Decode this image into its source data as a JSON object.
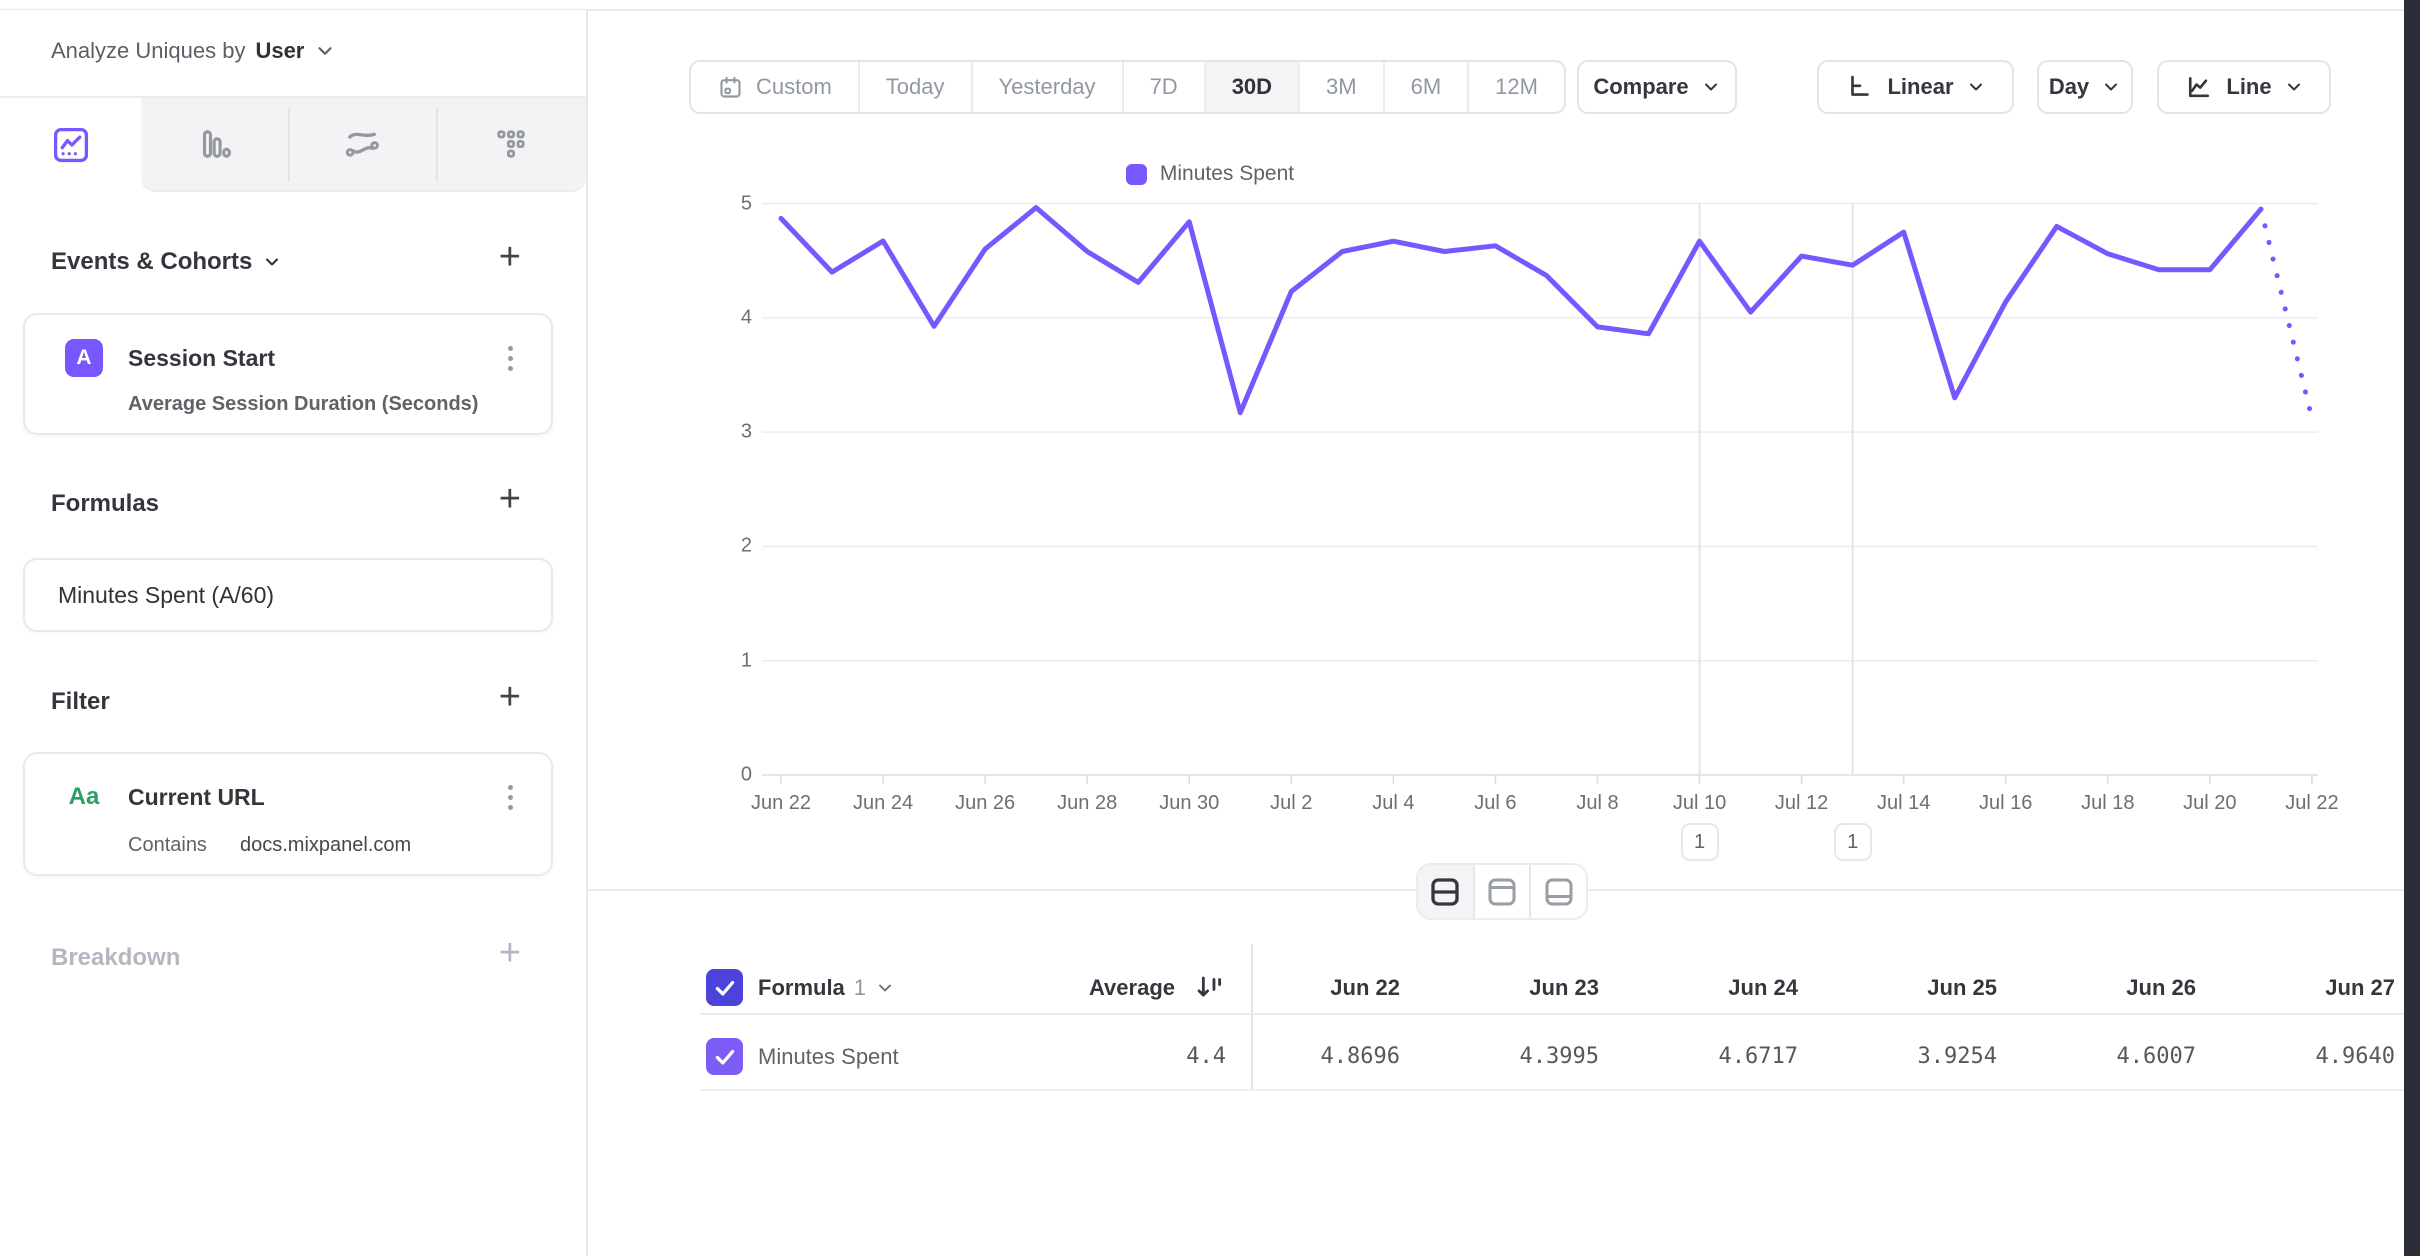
{
  "sidebar": {
    "analyze_label": "Analyze Uniques by",
    "analyze_value": "User",
    "tabs": [
      {
        "icon": "insights-line-chart",
        "active": true
      },
      {
        "icon": "bar-chart",
        "active": false
      },
      {
        "icon": "flows",
        "active": false
      },
      {
        "icon": "grid-dots",
        "active": false
      }
    ],
    "events_section": {
      "title": "Events & Cohorts",
      "item": {
        "badge": "A",
        "badge_color": "#7857ff",
        "name": "Session Start",
        "measurement": "Average Session Duration (Seconds)"
      }
    },
    "formulas_section": {
      "title": "Formulas",
      "item": {
        "name": "Minutes Spent (A/60)"
      }
    },
    "filter_section": {
      "title": "Filter",
      "item": {
        "badge": "Aa",
        "badge_color": "#2d9e64",
        "name": "Current URL",
        "operator": "Contains",
        "value": "docs.mixpanel.com"
      }
    },
    "breakdown_section": {
      "title": "Breakdown"
    }
  },
  "toolbar": {
    "date_ranges": [
      "Custom",
      "Today",
      "Yesterday",
      "7D",
      "30D",
      "3M",
      "6M",
      "12M"
    ],
    "active_range": "30D",
    "compare_label": "Compare",
    "scale_label": "Linear",
    "interval_label": "Day",
    "chart_type_label": "Line"
  },
  "chart_data": {
    "type": "line",
    "title": "",
    "xlabel": "",
    "ylabel": "",
    "ylim": [
      0,
      5
    ],
    "yticks": [
      0,
      1,
      2,
      3,
      4,
      5
    ],
    "grid": true,
    "legend_position": "top-center",
    "x": [
      "Jun 22",
      "Jun 23",
      "Jun 24",
      "Jun 25",
      "Jun 26",
      "Jun 27",
      "Jun 28",
      "Jun 29",
      "Jun 30",
      "Jul 1",
      "Jul 2",
      "Jul 3",
      "Jul 4",
      "Jul 5",
      "Jul 6",
      "Jul 7",
      "Jul 8",
      "Jul 9",
      "Jul 10",
      "Jul 11",
      "Jul 12",
      "Jul 13",
      "Jul 14",
      "Jul 15",
      "Jul 16",
      "Jul 17",
      "Jul 18",
      "Jul 19",
      "Jul 20",
      "Jul 21",
      "Jul 22"
    ],
    "x_label_every": 2,
    "series": [
      {
        "name": "Minutes Spent",
        "color": "#7857ff",
        "values": [
          4.8696,
          4.3995,
          4.6717,
          3.9254,
          4.6007,
          4.964,
          4.58,
          4.31,
          4.84,
          3.17,
          4.23,
          4.58,
          4.67,
          4.58,
          4.63,
          4.37,
          3.92,
          3.86,
          4.67,
          4.05,
          4.54,
          4.46,
          4.75,
          3.3,
          4.14,
          4.8,
          4.56,
          4.42,
          4.42,
          4.95,
          3.12
        ],
        "last_segment_dashed": true
      }
    ],
    "annotations": [
      {
        "day_index": 18,
        "date": "Jul 10",
        "label": "1"
      },
      {
        "day_index": 21,
        "date": "Jul 13",
        "label": "1"
      }
    ]
  },
  "layout_toggle": {
    "options": [
      "split-view",
      "chart-only",
      "table-only"
    ],
    "active": "split-view"
  },
  "table": {
    "formula_label": "Formula",
    "formula_index": "1",
    "average_label": "Average",
    "columns": [
      "Jun 22",
      "Jun 23",
      "Jun 24",
      "Jun 25",
      "Jun 26",
      "Jun 27"
    ],
    "row": {
      "name": "Minutes Spent",
      "average": "4.4",
      "values": [
        "4.8696",
        "4.3995",
        "4.6717",
        "3.9254",
        "4.6007",
        "4.9640"
      ]
    }
  }
}
